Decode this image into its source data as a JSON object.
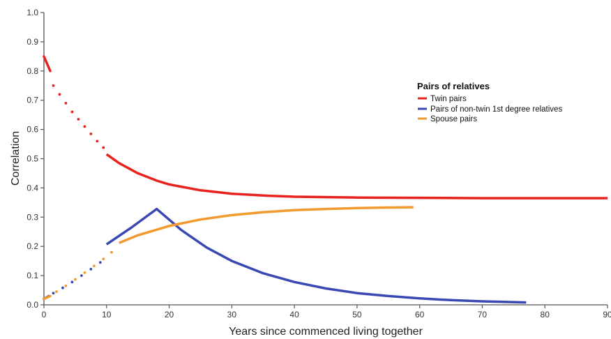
{
  "chart_data": {
    "type": "line",
    "xlabel": "Years since commenced living together",
    "ylabel": "Correlation",
    "xlim": [
      0,
      90
    ],
    "ylim": [
      0,
      1.0
    ],
    "xticks": [
      0,
      10,
      20,
      30,
      40,
      50,
      60,
      70,
      80,
      90
    ],
    "yticks": [
      0.0,
      0.1,
      0.2,
      0.3,
      0.4,
      0.5,
      0.6,
      0.7,
      0.8,
      0.9,
      1.0
    ],
    "ytick_labels": [
      "0.0",
      "0.1",
      "0.2",
      "0.3",
      "0.4",
      "0.5",
      "0.6",
      "0.7",
      "0.8",
      "0.9",
      "1.0"
    ],
    "grid": false,
    "legend": {
      "title": "Pairs of relatives",
      "placement": "upper-right"
    },
    "series": [
      {
        "name": "Twin pairs",
        "color": "#e8231f",
        "dotted": [
          [
            1.5,
            0.75
          ],
          [
            2.5,
            0.72
          ],
          [
            3.5,
            0.69
          ],
          [
            4.5,
            0.66
          ],
          [
            5.5,
            0.635
          ],
          [
            6.5,
            0.61
          ],
          [
            7.5,
            0.585
          ],
          [
            8.5,
            0.56
          ],
          [
            9.5,
            0.538
          ]
        ],
        "solid": [
          [
            0,
            0.85
          ],
          [
            1,
            0.8
          ]
        ],
        "curve": [
          [
            10,
            0.515
          ],
          [
            12,
            0.485
          ],
          [
            15,
            0.45
          ],
          [
            18,
            0.425
          ],
          [
            20,
            0.412
          ],
          [
            25,
            0.392
          ],
          [
            30,
            0.38
          ],
          [
            35,
            0.374
          ],
          [
            40,
            0.37
          ],
          [
            50,
            0.367
          ],
          [
            60,
            0.366
          ],
          [
            70,
            0.365
          ],
          [
            80,
            0.365
          ],
          [
            90,
            0.365
          ]
        ]
      },
      {
        "name": "Pairs of non-twin 1st degree relatives",
        "color": "#3a48b3",
        "dotted": [
          [
            1.5,
            0.04
          ],
          [
            3,
            0.058
          ],
          [
            4.5,
            0.078
          ],
          [
            6,
            0.1
          ],
          [
            7.5,
            0.122
          ],
          [
            9,
            0.145
          ]
        ],
        "solid": [
          [
            0,
            0.02
          ],
          [
            0.8,
            0.03
          ]
        ],
        "curve": [
          [
            10,
            0.207
          ],
          [
            14,
            0.265
          ],
          [
            18,
            0.328
          ],
          [
            22,
            0.255
          ],
          [
            26,
            0.196
          ],
          [
            30,
            0.15
          ],
          [
            35,
            0.108
          ],
          [
            40,
            0.078
          ],
          [
            45,
            0.056
          ],
          [
            50,
            0.04
          ],
          [
            55,
            0.03
          ],
          [
            60,
            0.022
          ],
          [
            65,
            0.016
          ],
          [
            70,
            0.012
          ],
          [
            77,
            0.008
          ]
        ]
      },
      {
        "name": "Spouse pairs",
        "color": "#f29a2e",
        "dotted": [
          [
            2,
            0.045
          ],
          [
            3.5,
            0.065
          ],
          [
            5,
            0.087
          ],
          [
            6.5,
            0.11
          ],
          [
            8,
            0.133
          ],
          [
            9.5,
            0.157
          ],
          [
            10.8,
            0.18
          ]
        ],
        "solid": [
          [
            0,
            0.02
          ],
          [
            1,
            0.03
          ]
        ],
        "curve": [
          [
            12,
            0.212
          ],
          [
            15,
            0.238
          ],
          [
            20,
            0.27
          ],
          [
            25,
            0.292
          ],
          [
            30,
            0.307
          ],
          [
            35,
            0.317
          ],
          [
            40,
            0.324
          ],
          [
            45,
            0.328
          ],
          [
            50,
            0.331
          ],
          [
            55,
            0.333
          ],
          [
            59,
            0.334
          ]
        ]
      }
    ]
  }
}
